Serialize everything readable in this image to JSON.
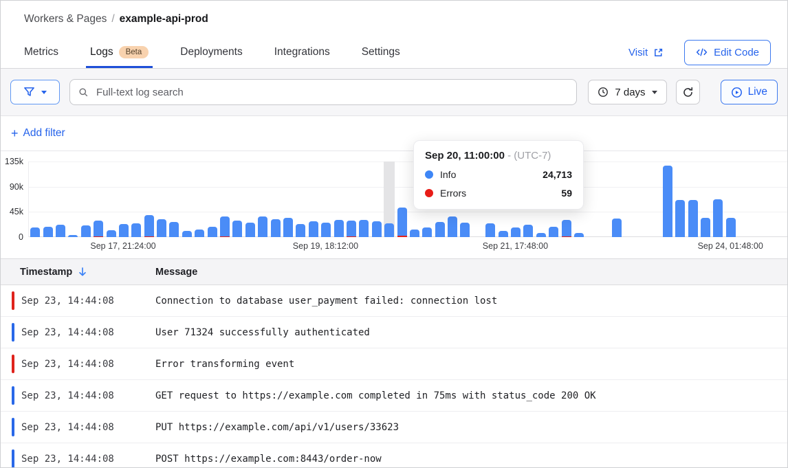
{
  "breadcrumb": {
    "section": "Workers & Pages",
    "separator": "/",
    "current": "example-api-prod"
  },
  "tabs": [
    {
      "label": "Metrics",
      "active": false
    },
    {
      "label": "Logs",
      "badge": "Beta",
      "active": true
    },
    {
      "label": "Deployments",
      "active": false
    },
    {
      "label": "Integrations",
      "active": false
    },
    {
      "label": "Settings",
      "active": false
    }
  ],
  "header_actions": {
    "visit": "Visit",
    "edit_code": "Edit Code"
  },
  "toolbar": {
    "search_placeholder": "Full-text log search",
    "time_range": "7 days",
    "live": "Live"
  },
  "filters": {
    "plus": "+",
    "label": "Add filter"
  },
  "tooltip": {
    "title": "Sep 20, 11:00:00",
    "timezone": "- (UTC-7)",
    "rows": [
      {
        "label": "Info",
        "value": "24,713",
        "color": "#3e86f6"
      },
      {
        "label": "Errors",
        "value": "59",
        "color": "#e81c17"
      }
    ]
  },
  "chart_data": {
    "type": "bar",
    "title": "Log events over time (7 days)",
    "stacked": true,
    "grid": true,
    "ylim": [
      0,
      135000
    ],
    "ytick_labels": [
      "135k",
      "90k",
      "45k",
      "0"
    ],
    "xticks": [
      {
        "label": "Sep 17, 21:24:00",
        "slot": 8
      },
      {
        "label": "Sep 19, 18:12:00",
        "slot": 24
      },
      {
        "label": "Sep 21, 17:48:00",
        "slot": 39
      },
      {
        "label": "Sep 24, 01:48:00",
        "slot": 56
      }
    ],
    "hovered_slot": 29,
    "hovered_point": {
      "time": "Sep 20, 11:00:00",
      "info": 24713,
      "errors": 59
    },
    "series": [
      {
        "name": "Info",
        "color": "#4a8cf7",
        "values": [
          17000,
          18000,
          22000,
          4000,
          21000,
          28000,
          12000,
          23000,
          24000,
          37000,
          32000,
          27000,
          11000,
          13000,
          18000,
          35000,
          29000,
          26000,
          37000,
          32000,
          35000,
          23000,
          28000,
          26000,
          31000,
          28000,
          31000,
          28000,
          24713,
          50000,
          13000,
          17000,
          27000,
          37000,
          26000,
          0,
          24000,
          11000,
          17000,
          22000,
          7000,
          19000,
          29000,
          8000,
          0,
          0,
          33000,
          0,
          0,
          0,
          128000,
          66000,
          66000,
          35000,
          67000,
          35000,
          0,
          0,
          0,
          0
        ]
      },
      {
        "name": "Errors",
        "color": "#e3221b",
        "values": [
          0,
          0,
          0,
          0,
          0,
          800,
          0,
          0,
          0,
          500,
          0,
          0,
          0,
          0,
          0,
          500,
          0,
          0,
          0,
          0,
          0,
          0,
          0,
          0,
          0,
          400,
          0,
          0,
          59,
          2500,
          0,
          0,
          0,
          0,
          0,
          0,
          0,
          0,
          0,
          0,
          0,
          0,
          600,
          0,
          0,
          0,
          0,
          0,
          0,
          0,
          0,
          0,
          0,
          0,
          0,
          0,
          0,
          0,
          0,
          0
        ]
      }
    ]
  },
  "table": {
    "columns": [
      "Timestamp",
      "Message"
    ],
    "rows": [
      {
        "level": "error",
        "timestamp": "Sep 23, 14:44:08",
        "message": "Connection to database user_payment failed: connection lost"
      },
      {
        "level": "info",
        "timestamp": "Sep 23, 14:44:08",
        "message": "User 71324 successfully authenticated"
      },
      {
        "level": "error",
        "timestamp": "Sep 23, 14:44:08",
        "message": "Error transforming event"
      },
      {
        "level": "info",
        "timestamp": "Sep 23, 14:44:08",
        "message": "GET request to https://example.com completed in 75ms with status_code 200 OK"
      },
      {
        "level": "info",
        "timestamp": "Sep 23, 14:44:08",
        "message": "PUT https://example.com/api/v1/users/33623"
      },
      {
        "level": "info",
        "timestamp": "Sep 23, 14:44:08",
        "message": "POST https://example.com:8443/order-now"
      }
    ]
  },
  "colors": {
    "accent": "#2563eb",
    "tab_underline": "#1d4fd8",
    "bar_info": "#4a8cf7",
    "bar_error": "#e3221b",
    "indicator_info": "#2968e8",
    "indicator_error": "#df231c",
    "beta_badge_bg": "#f8d2ae"
  }
}
